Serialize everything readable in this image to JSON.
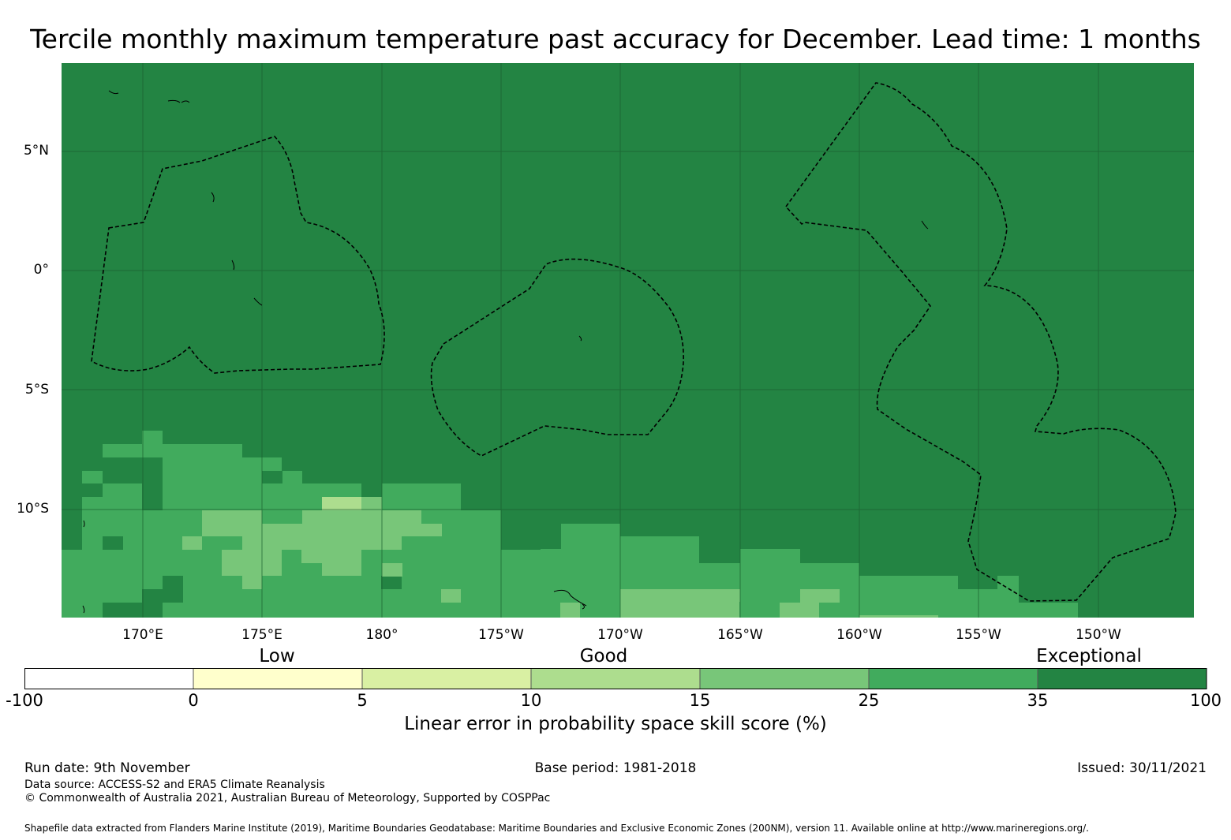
{
  "title": "Tercile monthly maximum temperature past accuracy for December. Lead time: 1 months",
  "map": {
    "lat_labels": [
      "5°N",
      "0°",
      "5°S",
      "10°S"
    ],
    "lon_labels": [
      "170°E",
      "175°E",
      "180°",
      "175°W",
      "170°W",
      "165°W",
      "160°W",
      "155°W",
      "150°W"
    ],
    "colors": {
      "background": "#238443",
      "c25_35": "#41ab5d",
      "c15_25": "#78c679",
      "c10_15": "#addd8e",
      "grid": "#1a5e2f",
      "eez": "#000000"
    }
  },
  "legend": {
    "category_labels": [
      "Low",
      "Good",
      "Exceptional"
    ],
    "ticks": [
      "-100",
      "0",
      "5",
      "10",
      "15",
      "25",
      "35",
      "100"
    ],
    "colors": [
      "#ffffff",
      "#ffffcc",
      "#d9f0a3",
      "#addd8e",
      "#78c679",
      "#41ab5d",
      "#238443"
    ],
    "title": "Linear error in probability space skill score (%)"
  },
  "footer": {
    "run_date": "Run date: 9th November",
    "base_period": "Base period: 1981-2018",
    "issued": "Issued: 30/11/2021",
    "data_source": "Data source: ACCESS-S2 and ERA5 Climate Reanalysis",
    "copyright": "© Commonwealth of Australia 2021, Australian Bureau of Meteorology, Supported by COSPPac",
    "shapefile_note": "Shapefile data extracted from Flanders Marine Institute (2019), Maritime Boundaries Geodatabase: Maritime Boundaries and Exclusive Economic Zones (200NM), version 11. Available online at http://www.marineregions.org/."
  }
}
